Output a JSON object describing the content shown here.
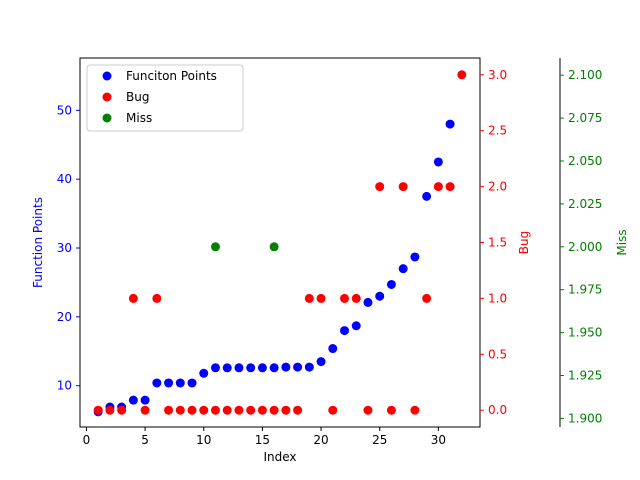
{
  "chart_data": {
    "type": "scatter",
    "xlabel": "Index",
    "x_ticks": [
      0,
      5,
      10,
      15,
      20,
      25,
      30
    ],
    "xlim": [
      -0.55,
      33.55
    ],
    "axes": [
      {
        "id": "fp",
        "label": "Function Points",
        "color": "#0000ff",
        "side": "left",
        "ylim": [
          4.0,
          57.6
        ],
        "ticks": [
          10,
          20,
          30,
          40,
          50
        ]
      },
      {
        "id": "bug",
        "label": "Bug",
        "color": "#ff0000",
        "side": "right",
        "ylim": [
          -0.15,
          3.15
        ],
        "ticks": [
          "0.0",
          "0.5",
          "1.0",
          "1.5",
          "2.0",
          "2.5",
          "3.0"
        ]
      },
      {
        "id": "miss",
        "label": "Miss",
        "color": "#008000",
        "side": "right-outer",
        "ylim": [
          1.895,
          2.11
        ],
        "ticks": [
          "1.900",
          "1.925",
          "1.950",
          "1.975",
          "2.000",
          "2.025",
          "2.050",
          "2.075",
          "2.100"
        ]
      }
    ],
    "series": [
      {
        "name": "Funciton Points",
        "axis": "fp",
        "color": "#0000ff",
        "x": [
          1,
          2,
          3,
          4,
          5,
          6,
          7,
          8,
          9,
          10,
          11,
          12,
          13,
          14,
          15,
          16,
          17,
          18,
          19,
          20,
          21,
          22,
          23,
          24,
          25,
          26,
          27,
          28,
          29,
          30,
          31
        ],
        "y": [
          6.2,
          6.9,
          6.9,
          7.9,
          7.9,
          10.4,
          10.4,
          10.4,
          10.4,
          11.8,
          12.6,
          12.6,
          12.6,
          12.6,
          12.6,
          12.6,
          12.7,
          12.7,
          12.7,
          13.5,
          15.4,
          18.0,
          18.7,
          22.1,
          23.0,
          24.7,
          27.0,
          28.7,
          37.5,
          42.5,
          48.0
        ]
      },
      {
        "name": "Bug",
        "axis": "bug",
        "color": "#ff0000",
        "x": [
          1,
          2,
          3,
          4,
          5,
          6,
          7,
          8,
          9,
          10,
          11,
          12,
          13,
          14,
          15,
          16,
          17,
          18,
          19,
          20,
          21,
          22,
          23,
          24,
          25,
          26,
          27,
          28,
          29,
          30,
          31,
          32
        ],
        "y": [
          0,
          0,
          0,
          1,
          0,
          1,
          0,
          0,
          0,
          0,
          0,
          0,
          0,
          0,
          0,
          0,
          0,
          0,
          1,
          1,
          0,
          1,
          1,
          0,
          2,
          0,
          2,
          0,
          1,
          2,
          2,
          3
        ]
      },
      {
        "name": "Miss",
        "axis": "miss",
        "color": "#008000",
        "x": [
          11,
          16
        ],
        "y": [
          2,
          2
        ]
      }
    ],
    "legend": {
      "position": "top-left",
      "entries": [
        "Funciton Points",
        "Bug",
        "Miss"
      ]
    },
    "grid": false
  }
}
